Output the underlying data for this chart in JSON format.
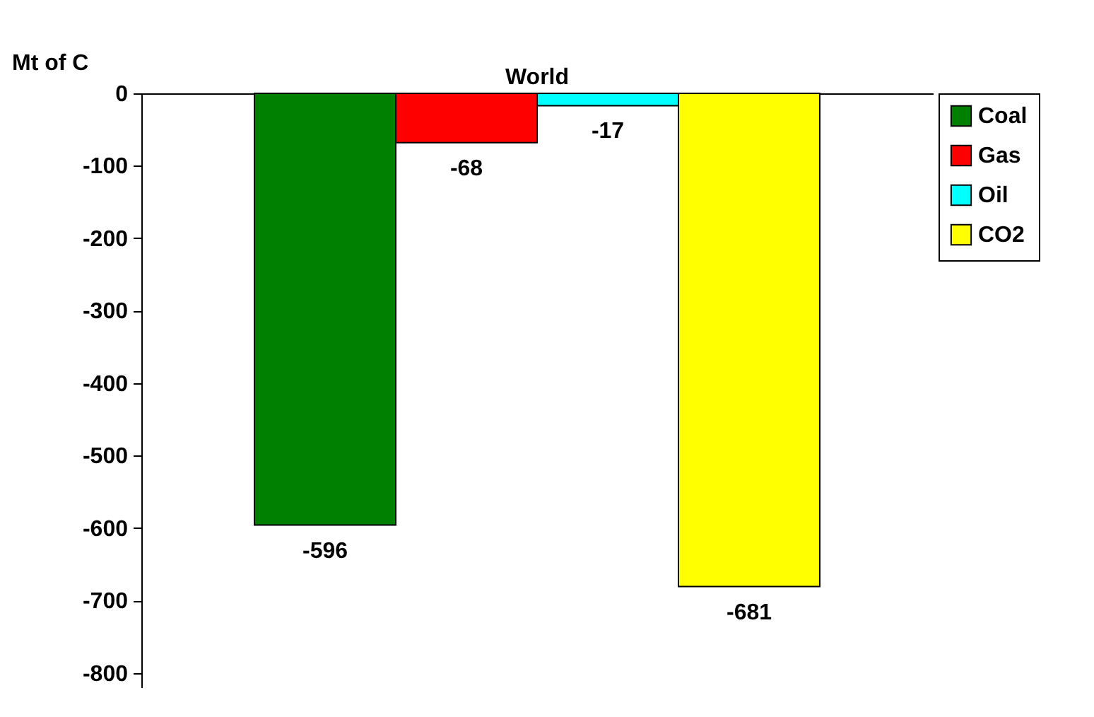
{
  "chart_data": {
    "type": "bar",
    "ylabel": "Mt of C",
    "categories": [
      "World"
    ],
    "series": [
      {
        "name": "Coal",
        "color": "#008000",
        "values": [
          -596
        ]
      },
      {
        "name": "Gas",
        "color": "#ff0000",
        "values": [
          -68
        ]
      },
      {
        "name": "Oil",
        "color": "#00ffff",
        "values": [
          -17
        ]
      },
      {
        "name": "CO2",
        "color": "#ffff00",
        "values": [
          -681
        ]
      }
    ],
    "ylim": [
      -820,
      0
    ],
    "yticks": [
      -800,
      -700,
      -600,
      -500,
      -400,
      -300,
      -200,
      -100,
      0
    ],
    "data_labels": true,
    "grid": false,
    "legend": "right"
  }
}
